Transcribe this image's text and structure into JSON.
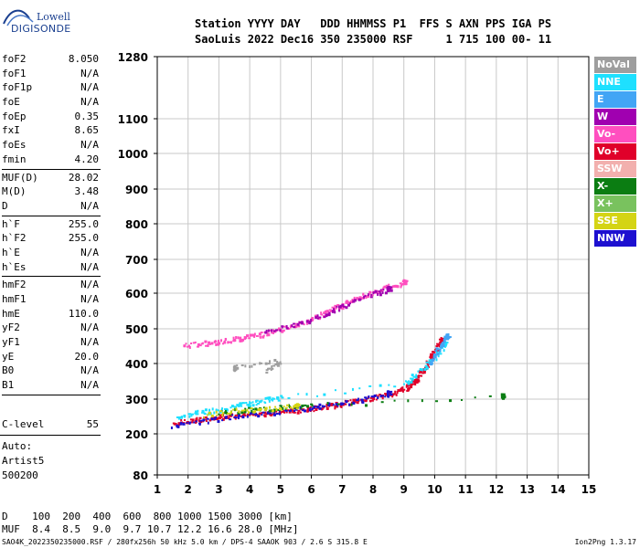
{
  "logo": {
    "line1": "Lowell",
    "line2": "DIGISONDE"
  },
  "header": {
    "line1": "Station YYYY DAY   DDD HHMMSS P1  FFS S AXN PPS IGA PS",
    "line2": "SaoLuis 2022 Dec16 350 235000 RSF     1 715 100 00- 11"
  },
  "params": {
    "group1": [
      {
        "k": "foF2",
        "v": "8.050"
      },
      {
        "k": "foF1",
        "v": "N/A"
      },
      {
        "k": "foF1p",
        "v": "N/A"
      },
      {
        "k": "foE",
        "v": "N/A"
      },
      {
        "k": "foEp",
        "v": "0.35"
      },
      {
        "k": "fxI",
        "v": "8.65"
      },
      {
        "k": "foEs",
        "v": "N/A"
      },
      {
        "k": "fmin",
        "v": "4.20"
      }
    ],
    "group2": [
      {
        "k": "MUF(D)",
        "v": "28.02"
      },
      {
        "k": "M(D)",
        "v": "3.48"
      },
      {
        "k": "D",
        "v": "N/A"
      }
    ],
    "group3": [
      {
        "k": "h`F",
        "v": "255.0"
      },
      {
        "k": "h`F2",
        "v": "255.0"
      },
      {
        "k": "h`E",
        "v": "N/A"
      },
      {
        "k": "h`Es",
        "v": "N/A"
      }
    ],
    "group4": [
      {
        "k": "hmF2",
        "v": "N/A"
      },
      {
        "k": "hmF1",
        "v": "N/A"
      },
      {
        "k": "hmE",
        "v": "110.0"
      },
      {
        "k": "yF2",
        "v": "N/A"
      },
      {
        "k": "yF1",
        "v": "N/A"
      },
      {
        "k": "yE",
        "v": "20.0"
      },
      {
        "k": "B0",
        "v": "N/A"
      },
      {
        "k": "B1",
        "v": "N/A"
      }
    ],
    "clevel": {
      "k": "C-level",
      "v": "55"
    },
    "auto": [
      "Auto:",
      "Artist5",
      "500200"
    ]
  },
  "legend": [
    {
      "label": "NoVal",
      "color": "#9e9e9e"
    },
    {
      "label": "NNE",
      "color": "#1ee0ff"
    },
    {
      "label": "E",
      "color": "#42a5f5"
    },
    {
      "label": "W",
      "color": "#a000b0"
    },
    {
      "label": "Vo-",
      "color": "#ff4fbf"
    },
    {
      "label": "Vo+",
      "color": "#e0002a"
    },
    {
      "label": "SSW",
      "color": "#f2b0ae"
    },
    {
      "label": "X-",
      "color": "#0b7d12"
    },
    {
      "label": "X+",
      "color": "#79c25e"
    },
    {
      "label": "SSE",
      "color": "#d4d414"
    },
    {
      "label": "NNW",
      "color": "#1d10d0"
    }
  ],
  "bottom": {
    "d_line": "D    100  200  400  600  800 1000 1500 3000 [km]",
    "muf_line": "MUF  8.4  8.5  9.0  9.7 10.7 12.2 16.6 28.0 [MHz]",
    "footer": "SAO4K_2022350235000.RSF / 280fx256h 50 kHz 5.0 km / DPS-4 SAAOK 903 / 2.6 S 315.8 E",
    "footer_right": "Ion2Png 1.3.17"
  },
  "chart_data": {
    "type": "scatter",
    "xlabel": "",
    "ylabel": "",
    "xlim": [
      1,
      15
    ],
    "xticks": [
      1,
      2,
      3,
      4,
      5,
      6,
      7,
      8,
      9,
      10,
      11,
      12,
      13,
      14,
      15
    ],
    "y_scale": "nonlinear (ionogram virtual height)",
    "yticks": [
      80,
      200,
      300,
      400,
      500,
      600,
      700,
      800,
      900,
      1000,
      1100,
      1280
    ],
    "grid": true,
    "series": [
      {
        "name": "Vo+",
        "color": "#e0002a",
        "points": [
          [
            1.5,
            232
          ],
          [
            2.0,
            238
          ],
          [
            2.5,
            245
          ],
          [
            3.0,
            250
          ],
          [
            3.5,
            255
          ],
          [
            4.0,
            258
          ],
          [
            4.5,
            262
          ],
          [
            5.0,
            266
          ],
          [
            5.5,
            270
          ],
          [
            6.0,
            275
          ],
          [
            6.5,
            282
          ],
          [
            7.0,
            290
          ],
          [
            7.5,
            297
          ],
          [
            8.0,
            305
          ],
          [
            8.5,
            315
          ],
          [
            9.0,
            330
          ],
          [
            9.2,
            345
          ],
          [
            9.4,
            360
          ],
          [
            9.6,
            385
          ],
          [
            9.8,
            410
          ],
          [
            10.0,
            440
          ],
          [
            10.2,
            470
          ]
        ]
      },
      {
        "name": "NNE",
        "color": "#1ee0ff",
        "points": [
          [
            1.6,
            250
          ],
          [
            2.2,
            262
          ],
          [
            2.8,
            270
          ],
          [
            3.5,
            285
          ],
          [
            4.0,
            290
          ],
          [
            4.5,
            300
          ],
          [
            5.0,
            305
          ],
          [
            9.0,
            345
          ],
          [
            9.5,
            380
          ],
          [
            10.0,
            420
          ],
          [
            10.3,
            460
          ]
        ]
      },
      {
        "name": "E",
        "color": "#42a5f5",
        "points": [
          [
            9.8,
            400
          ],
          [
            10.0,
            430
          ],
          [
            10.2,
            455
          ],
          [
            10.4,
            480
          ]
        ]
      },
      {
        "name": "Vo-",
        "color": "#ff4fbf",
        "points": [
          [
            1.8,
            452
          ],
          [
            2.5,
            460
          ],
          [
            3.0,
            465
          ],
          [
            3.5,
            472
          ],
          [
            4.0,
            480
          ],
          [
            4.5,
            488
          ],
          [
            5.0,
            500
          ],
          [
            5.5,
            512
          ],
          [
            6.0,
            530
          ],
          [
            6.5,
            550
          ],
          [
            7.0,
            570
          ],
          [
            7.5,
            590
          ],
          [
            8.0,
            605
          ],
          [
            8.5,
            620
          ],
          [
            9.0,
            635
          ]
        ]
      },
      {
        "name": "W",
        "color": "#a000b0",
        "points": [
          [
            4.5,
            490
          ],
          [
            5.5,
            515
          ],
          [
            6.5,
            545
          ],
          [
            7.0,
            565
          ],
          [
            8.0,
            600
          ],
          [
            8.5,
            615
          ]
        ]
      },
      {
        "name": "NNW",
        "color": "#1d10d0",
        "points": [
          [
            1.5,
            228
          ],
          [
            2.5,
            240
          ],
          [
            3.5,
            252
          ],
          [
            4.5,
            263
          ],
          [
            5.5,
            272
          ],
          [
            6.5,
            285
          ],
          [
            7.5,
            298
          ],
          [
            8.5,
            318
          ]
        ]
      },
      {
        "name": "X-",
        "color": "#0b7d12",
        "points": [
          [
            3.0,
            262
          ],
          [
            4.0,
            272
          ],
          [
            5.0,
            278
          ],
          [
            6.0,
            285
          ],
          [
            12.2,
            310
          ]
        ]
      },
      {
        "name": "SSE",
        "color": "#d4d414",
        "points": [
          [
            2.5,
            255
          ],
          [
            3.5,
            268
          ],
          [
            4.5,
            275
          ],
          [
            5.5,
            282
          ]
        ]
      },
      {
        "name": "NoVal",
        "color": "#9e9e9e",
        "points": [
          [
            4.5,
            380
          ],
          [
            5.0,
            410
          ],
          [
            3.5,
            390
          ]
        ]
      }
    ]
  }
}
